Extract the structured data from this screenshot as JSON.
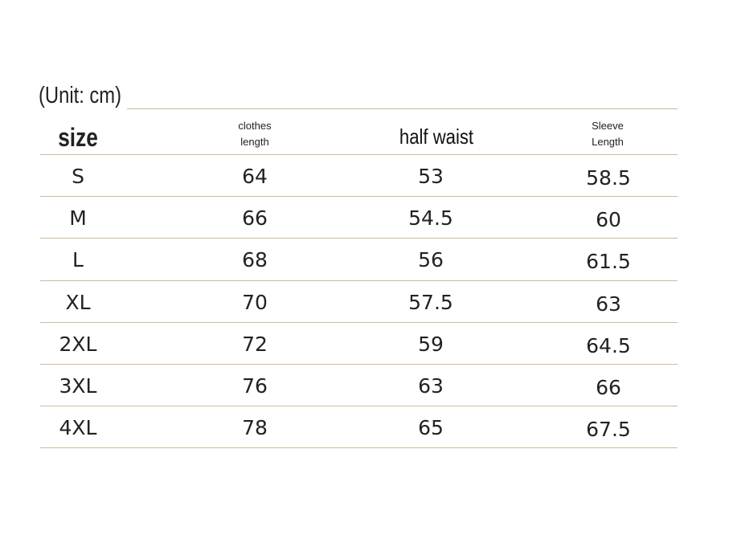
{
  "unit": "(Unit: cm)",
  "table": {
    "headers": [
      "size",
      "clothes length",
      "half waist",
      "Sleeve Length"
    ],
    "rows": [
      [
        "S",
        64,
        53,
        58.5
      ],
      [
        "M",
        66,
        54.5,
        60
      ],
      [
        "L",
        68,
        56,
        61.5
      ],
      [
        "XL",
        70,
        57.5,
        63
      ],
      [
        "2XL",
        72,
        59,
        64.5
      ],
      [
        "3XL",
        76,
        63,
        66
      ],
      [
        "4XL",
        78,
        65,
        67.5
      ]
    ]
  }
}
